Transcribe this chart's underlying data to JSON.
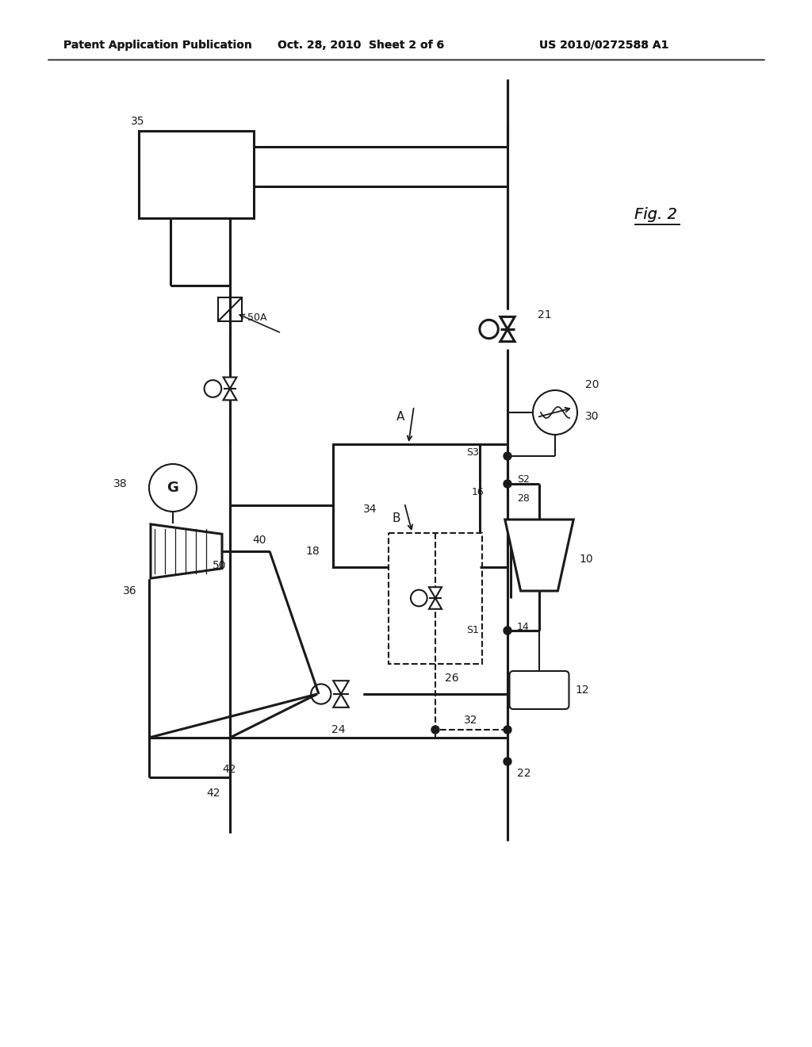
{
  "bg_color": "#ffffff",
  "line_color": "#1a1a1a",
  "header_left": "Patent Application Publication",
  "header_mid": "Oct. 28, 2010  Sheet 2 of 6",
  "header_right": "US 2010/0272588 A1",
  "fig_label": "Fig. 2",
  "lw_main": 2.2,
  "lw_thin": 1.5
}
